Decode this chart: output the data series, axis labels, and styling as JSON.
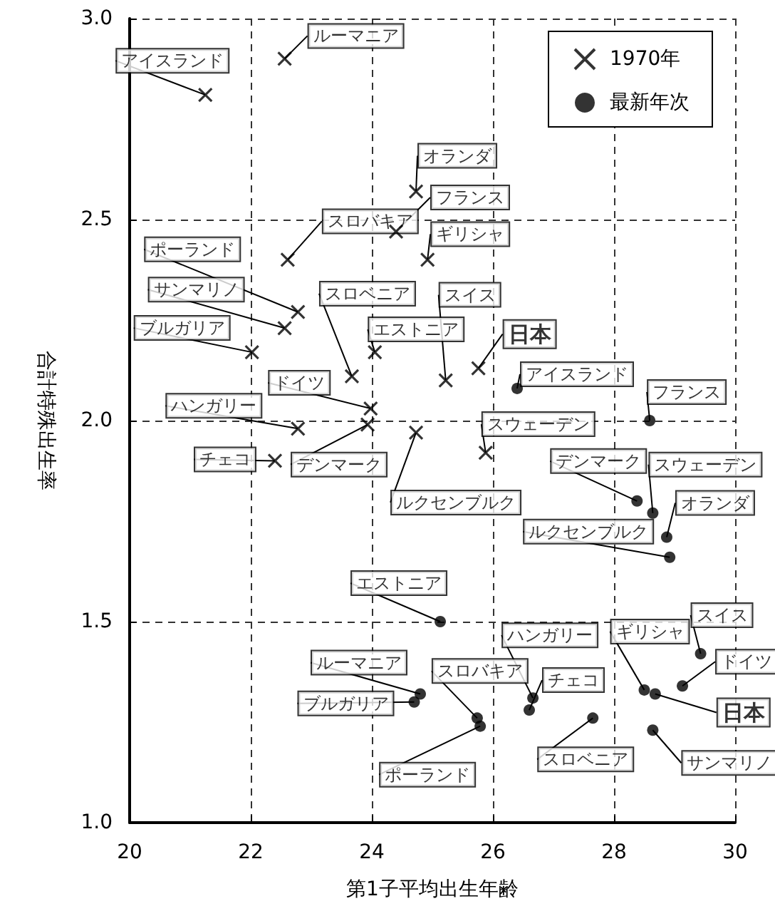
{
  "chart_data": {
    "type": "scatter",
    "xlabel": "第1子平均出生年齢",
    "ylabel": "合計特殊出生率",
    "xlim": [
      20,
      30
    ],
    "xticks": [
      20,
      22,
      24,
      26,
      28,
      30
    ],
    "ylim": [
      1,
      3
    ],
    "yticks": [
      {
        "value": 1,
        "label": "1.0"
      },
      {
        "value": 1.5,
        "label": "1.5"
      },
      {
        "value": 2,
        "label": "2.0"
      },
      {
        "value": 2.5,
        "label": "2.5"
      },
      {
        "value": 3,
        "label": "3.0"
      }
    ],
    "grid": true,
    "legend": "top right",
    "series": [
      {
        "name": "1970年",
        "marker": "cross",
        "color": "#000000",
        "x": [
          21.25,
          22.56,
          24.73,
          24.4,
          22.61,
          24.92,
          22.78,
          22.56,
          22.02,
          23.67,
          24.05,
          25.22,
          25.76,
          23.98,
          22.78,
          23.93,
          22.4,
          24.73,
          25.88
        ],
        "values": [
          2.81,
          2.9,
          2.57,
          2.47,
          2.4,
          2.4,
          2.27,
          2.23,
          2.17,
          2.11,
          2.17,
          2.1,
          2.13,
          2.03,
          1.98,
          1.99,
          1.9,
          1.97,
          1.92
        ]
      },
      {
        "name": "最新年次",
        "marker": "circle",
        "color": "#000000",
        "x": [
          26.4,
          28.59,
          28.38,
          28.64,
          28.87,
          28.92,
          25.13,
          24.8,
          24.7,
          25.74,
          25.79,
          26.66,
          26.6,
          27.65,
          28.5,
          28.68,
          28.64,
          29.43,
          29.13
        ],
        "values": [
          2.08,
          2.0,
          1.8,
          1.77,
          1.71,
          1.66,
          1.5,
          1.32,
          1.3,
          1.26,
          1.24,
          1.31,
          1.28,
          1.26,
          1.33,
          1.32,
          1.23,
          1.42,
          1.34
        ]
      }
    ],
    "annotations": [
      {
        "text": "アイスランド",
        "x": 21.25,
        "y": 2.81
      },
      {
        "text": "ルーマニア",
        "x": 22.56,
        "y": 2.9
      },
      {
        "text": "オランダ",
        "x": 24.73,
        "y": 2.57
      },
      {
        "text": "フランス",
        "x": 24.4,
        "y": 2.47
      },
      {
        "text": "スロバキア",
        "x": 22.61,
        "y": 2.4
      },
      {
        "text": "ギリシャ",
        "x": 24.92,
        "y": 2.4
      },
      {
        "text": "ポーランド",
        "x": 22.78,
        "y": 2.27
      },
      {
        "text": "サンマリノ",
        "x": 22.56,
        "y": 2.23
      },
      {
        "text": "ブルガリア",
        "x": 22.02,
        "y": 2.17
      },
      {
        "text": "スロベニア",
        "x": 23.67,
        "y": 2.11
      },
      {
        "text": "エストニア",
        "x": 24.05,
        "y": 2.17
      },
      {
        "text": "スイス",
        "x": 25.22,
        "y": 2.1
      },
      {
        "text": "日本",
        "x": 25.76,
        "y": 2.13
      },
      {
        "text": "ドイツ",
        "x": 23.98,
        "y": 2.03
      },
      {
        "text": "ハンガリー",
        "x": 22.78,
        "y": 1.98
      },
      {
        "text": "デンマーク",
        "x": 23.93,
        "y": 1.99
      },
      {
        "text": "チェコ",
        "x": 22.4,
        "y": 1.9
      },
      {
        "text": "ルクセンブルク",
        "x": 24.73,
        "y": 1.97
      },
      {
        "text": "スウェーデン",
        "x": 25.88,
        "y": 1.92
      },
      {
        "text": "アイスランド",
        "x": 26.4,
        "y": 2.08
      },
      {
        "text": "フランス",
        "x": 28.59,
        "y": 2.0
      },
      {
        "text": "デンマーク",
        "x": 28.38,
        "y": 1.8
      },
      {
        "text": "スウェーデン",
        "x": 28.64,
        "y": 1.77
      },
      {
        "text": "オランダ",
        "x": 28.87,
        "y": 1.71
      },
      {
        "text": "ルクセンブルク",
        "x": 28.92,
        "y": 1.66
      },
      {
        "text": "エストニア",
        "x": 25.13,
        "y": 1.5
      },
      {
        "text": "ルーマニア",
        "x": 24.8,
        "y": 1.32
      },
      {
        "text": "ブルガリア",
        "x": 24.7,
        "y": 1.3
      },
      {
        "text": "スロバキア",
        "x": 25.74,
        "y": 1.26
      },
      {
        "text": "ポーランド",
        "x": 25.79,
        "y": 1.24
      },
      {
        "text": "ハンガリー",
        "x": 26.66,
        "y": 1.31
      },
      {
        "text": "チェコ",
        "x": 26.6,
        "y": 1.28
      },
      {
        "text": "スロベニア",
        "x": 27.65,
        "y": 1.26
      },
      {
        "text": "ギリシャ",
        "x": 28.5,
        "y": 1.33
      },
      {
        "text": "日本",
        "x": 28.68,
        "y": 1.32
      },
      {
        "text": "サンマリノ",
        "x": 28.64,
        "y": 1.23
      },
      {
        "text": "スイス",
        "x": 29.43,
        "y": 1.42
      },
      {
        "text": "ドイツ",
        "x": 29.13,
        "y": 1.34
      }
    ]
  }
}
